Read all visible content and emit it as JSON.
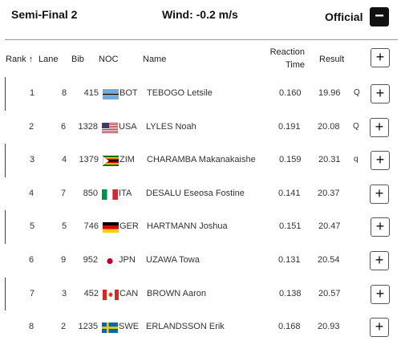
{
  "header": {
    "title": "Semi-Final 2",
    "wind": "Wind: -0.2 m/s",
    "official": "Official",
    "collapse_label": "−"
  },
  "columns": {
    "rank": "Rank ↑",
    "lane": "Lane",
    "bib": "Bib",
    "noc": "NOC",
    "name": "Name",
    "reaction_line1": "Reaction",
    "reaction_line2": "Time",
    "result": "Result",
    "add_label": "+"
  },
  "rows": [
    {
      "rank": "1",
      "lane": "8",
      "bib": "415",
      "noc": "BOT",
      "flag_icon": "botswana-flag-icon",
      "name": "TEBOGO Letsile",
      "reaction": "0.160",
      "result": "19.96",
      "q": "Q",
      "add": "+"
    },
    {
      "rank": "2",
      "lane": "6",
      "bib": "1328",
      "noc": "USA",
      "flag_icon": "usa-flag-icon",
      "name": "LYLES Noah",
      "reaction": "0.191",
      "result": "20.08",
      "q": "Q",
      "add": "+"
    },
    {
      "rank": "3",
      "lane": "4",
      "bib": "1379",
      "noc": "ZIM",
      "flag_icon": "zimbabwe-flag-icon",
      "name": "CHARAMBA Makanakaishe",
      "reaction": "0.159",
      "result": "20.31",
      "q": "q",
      "add": "+"
    },
    {
      "rank": "4",
      "lane": "7",
      "bib": "850",
      "noc": "ITA",
      "flag_icon": "italy-flag-icon",
      "name": "DESALU Eseosa Fostine",
      "reaction": "0.141",
      "result": "20.37",
      "q": "",
      "add": "+"
    },
    {
      "rank": "5",
      "lane": "5",
      "bib": "746",
      "noc": "GER",
      "flag_icon": "germany-flag-icon",
      "name": "HARTMANN Joshua",
      "reaction": "0.151",
      "result": "20.47",
      "q": "",
      "add": "+"
    },
    {
      "rank": "6",
      "lane": "9",
      "bib": "952",
      "noc": "JPN",
      "flag_icon": "japan-flag-icon",
      "name": "UZAWA Towa",
      "reaction": "0.131",
      "result": "20.54",
      "q": "",
      "add": "+"
    },
    {
      "rank": "7",
      "lane": "3",
      "bib": "452",
      "noc": "CAN",
      "flag_icon": "canada-flag-icon",
      "name": "BROWN Aaron",
      "reaction": "0.138",
      "result": "20.57",
      "q": "",
      "add": "+"
    },
    {
      "rank": "8",
      "lane": "2",
      "bib": "1235",
      "noc": "SWE",
      "flag_icon": "sweden-flag-icon",
      "name": "ERLANDSSON Erik",
      "reaction": "0.168",
      "result": "20.93",
      "q": "",
      "add": "+"
    }
  ]
}
